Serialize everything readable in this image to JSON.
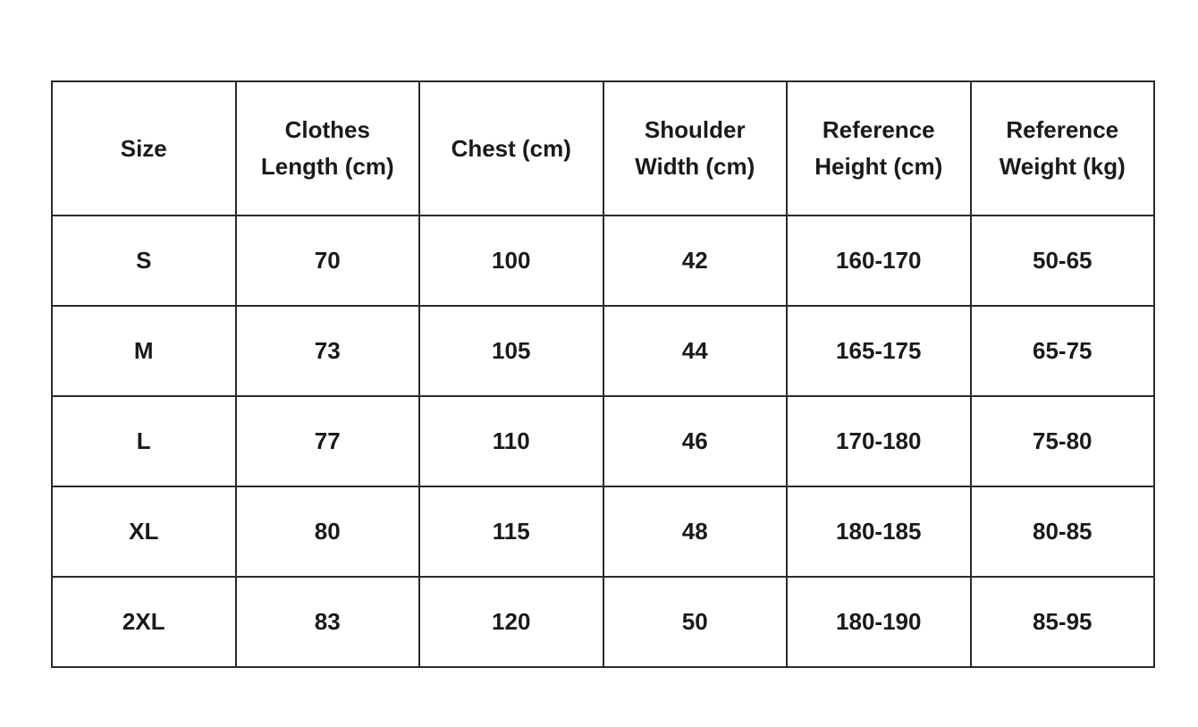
{
  "table": {
    "headers": [
      [
        "Size"
      ],
      [
        "Clothes",
        "Length (cm)"
      ],
      [
        "Chest (cm)"
      ],
      [
        "Shoulder",
        "Width (cm)"
      ],
      [
        "Reference",
        "Height (cm)"
      ],
      [
        "Reference",
        "Weight (kg)"
      ]
    ],
    "rows": [
      [
        "S",
        "70",
        "100",
        "42",
        "160-170",
        "50-65"
      ],
      [
        "M",
        "73",
        "105",
        "44",
        "165-175",
        "65-75"
      ],
      [
        "L",
        "77",
        "110",
        "46",
        "170-180",
        "75-80"
      ],
      [
        "XL",
        "80",
        "115",
        "48",
        "180-185",
        "80-85"
      ],
      [
        "2XL",
        "83",
        "120",
        "50",
        "180-190",
        "85-95"
      ]
    ]
  }
}
